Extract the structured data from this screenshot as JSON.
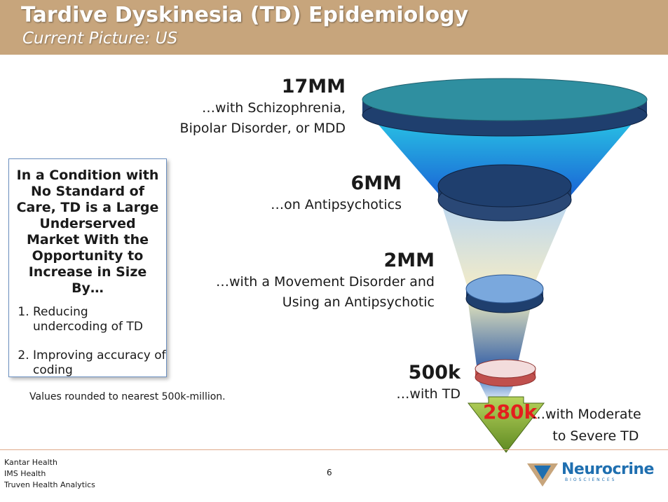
{
  "header": {
    "title": "Tardive Dyskinesia (TD) Epidemiology",
    "subtitle": "Current Picture: US"
  },
  "funnel": {
    "levels": [
      {
        "value": "17MM",
        "line1": "…with Schizophrenia,",
        "line2": "Bipolar Disorder, or MDD"
      },
      {
        "value": "6MM",
        "line1": "…on Antipsychotics"
      },
      {
        "value": "2MM",
        "line1": "…with a Movement Disorder and",
        "line2": "Using an Antipsychotic"
      },
      {
        "value": "500k",
        "line1": "…with TD"
      }
    ],
    "final": {
      "value": "280k",
      "line1": "…with Moderate",
      "line2": "to Severe TD"
    },
    "colors": {
      "teal": "#2f8fa0",
      "navy": "#1f3f6e",
      "light_blue": "#7aa8dd",
      "pink": "#f3dcdc",
      "red": "#c0504d",
      "arrow_green": "#7a9a2e",
      "value_red": "#e41e1e"
    }
  },
  "sidebox": {
    "heading": "In a Condition with No Standard of Care, TD is a Large Underserved Market With the Opportunity to Increase in Size By…",
    "items": [
      "Reducing undercoding of TD",
      "Improving accuracy of coding"
    ]
  },
  "note": "Values rounded to nearest 500k-million.",
  "footer": {
    "sources": [
      "Kantar Health",
      "IMS Health",
      "Truven Health Analytics"
    ],
    "page_number": "6",
    "logo_name": "Neurocrine",
    "logo_sub": "BIOSCIENCES",
    "logo_icon": "neurocrine-logo-icon"
  }
}
